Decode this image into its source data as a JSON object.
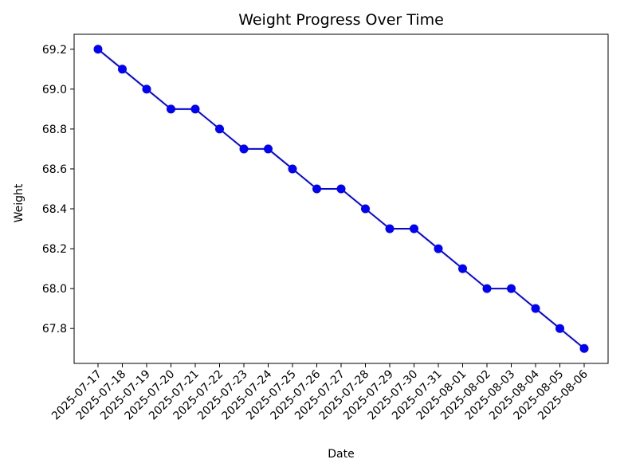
{
  "chart_data": {
    "type": "line",
    "title": "Weight Progress Over Time",
    "xlabel": "Date",
    "ylabel": "Weight",
    "x": [
      "2025-07-17",
      "2025-07-18",
      "2025-07-19",
      "2025-07-20",
      "2025-07-21",
      "2025-07-22",
      "2025-07-23",
      "2025-07-24",
      "2025-07-25",
      "2025-07-26",
      "2025-07-27",
      "2025-07-28",
      "2025-07-29",
      "2025-07-30",
      "2025-07-31",
      "2025-08-01",
      "2025-08-02",
      "2025-08-03",
      "2025-08-04",
      "2025-08-05",
      "2025-08-06"
    ],
    "series": [
      {
        "values": [
          69.2,
          69.1,
          69.0,
          68.9,
          68.9,
          68.8,
          68.7,
          68.7,
          68.6,
          68.5,
          68.5,
          68.4,
          68.3,
          68.3,
          68.2,
          68.1,
          68.0,
          68.0,
          67.9,
          67.8,
          67.7
        ],
        "color": "#0000ff",
        "marker": "circle"
      }
    ],
    "y_ticks": [
      "67.8",
      "68.0",
      "68.2",
      "68.4",
      "68.6",
      "68.8",
      "69.0",
      "69.2"
    ],
    "ylim": [
      67.625,
      69.275
    ],
    "grid": false,
    "x_tick_rotation": 45
  }
}
